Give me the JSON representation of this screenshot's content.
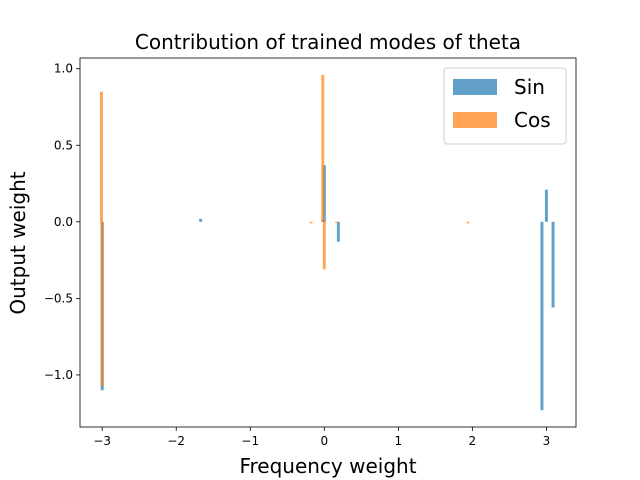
{
  "chart_data": {
    "type": "bar",
    "title": "Contribution of trained modes of theta",
    "xlabel": "Frequency weight",
    "ylabel": "Output weight",
    "xlim": [
      -3.3,
      3.4
    ],
    "ylim": [
      -1.34,
      1.07
    ],
    "xticks": [
      -3,
      -2,
      -1,
      0,
      1,
      2,
      3
    ],
    "xtick_labels": [
      "−3",
      "−2",
      "−1",
      "0",
      "1",
      "2",
      "3"
    ],
    "yticks": [
      -1.0,
      -0.5,
      0.0,
      0.5,
      1.0
    ],
    "ytick_labels": [
      "−1.0",
      "−0.5",
      "0.0",
      "0.5",
      "1.0"
    ],
    "bar_width": 0.04,
    "grid": false,
    "legend_position": "top-right",
    "series": [
      {
        "name": "Sin",
        "color": "#1f77b4",
        "x": [
          -3.0,
          -1.67,
          -0.02,
          0.0,
          0.19,
          2.94,
          3.0,
          3.09
        ],
        "values": [
          -1.1,
          0.02,
          0.01,
          0.37,
          -0.13,
          -1.23,
          0.21,
          -0.56
        ]
      },
      {
        "name": "Cos",
        "color": "#ff7f0e",
        "x": [
          -3.01,
          -3.0,
          -0.18,
          -0.02,
          0.0,
          0.16,
          1.94
        ],
        "values": [
          0.85,
          -1.07,
          -0.01,
          0.96,
          -0.31,
          0.0,
          -0.01
        ]
      }
    ]
  }
}
